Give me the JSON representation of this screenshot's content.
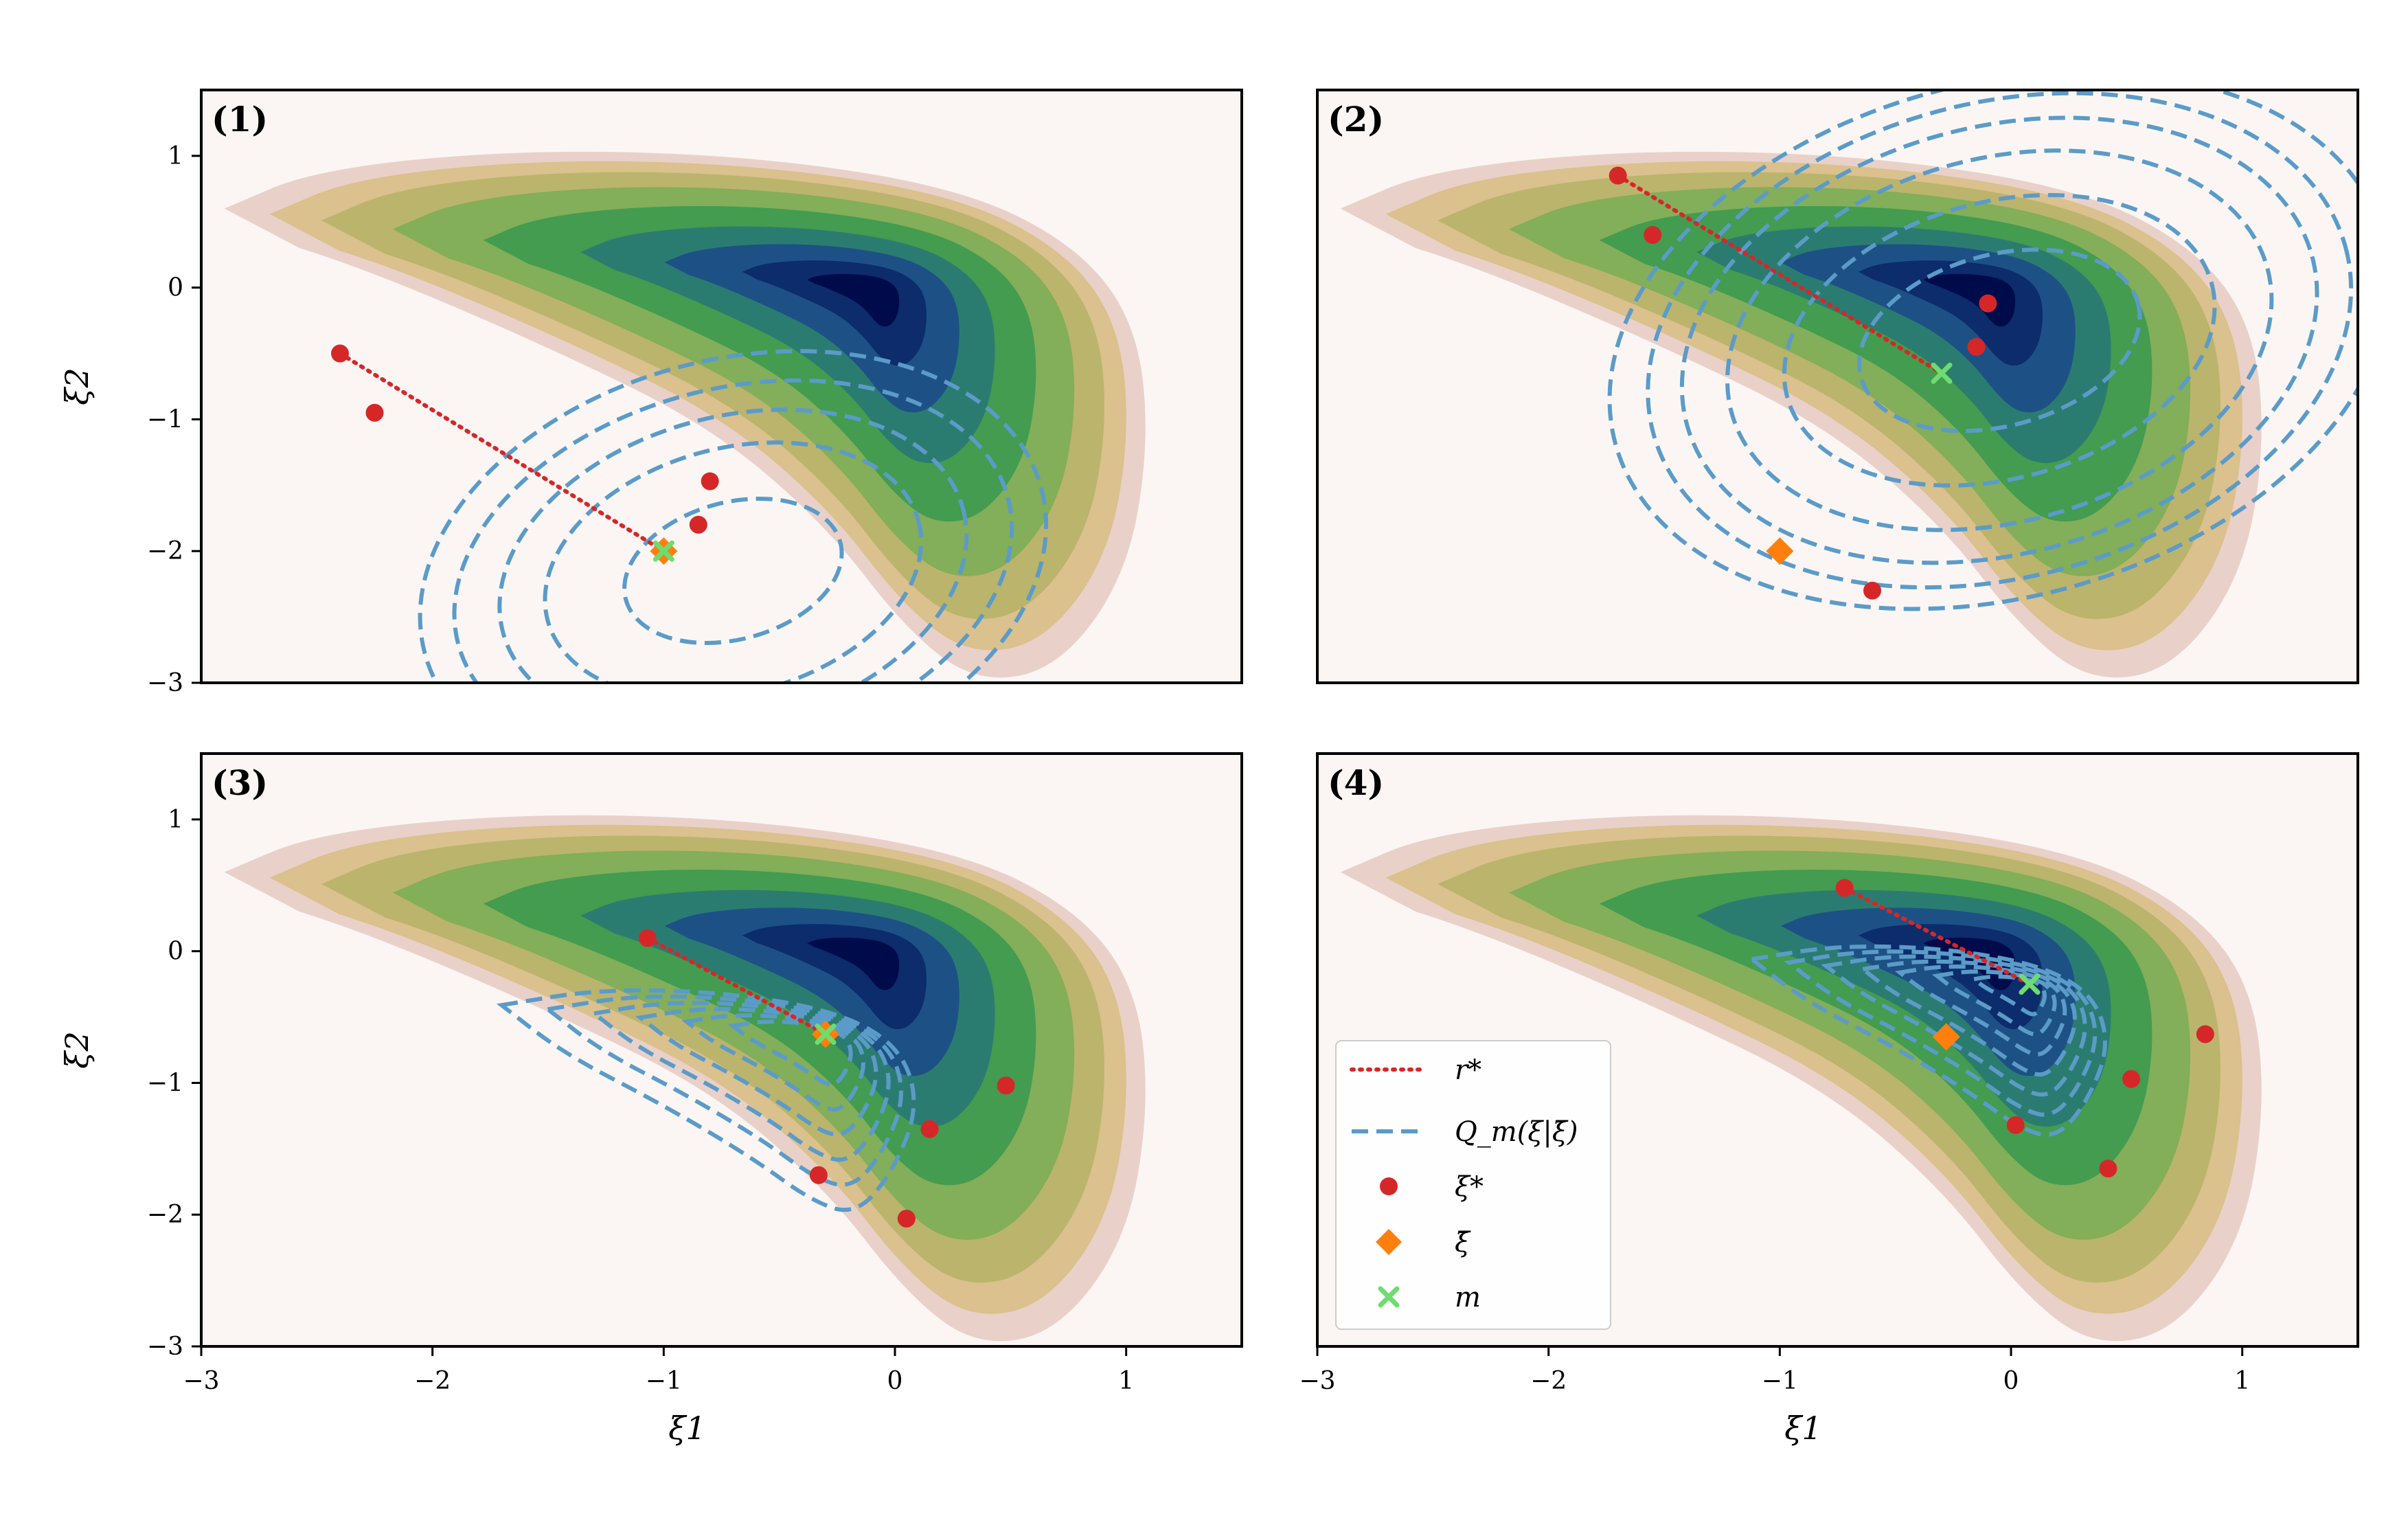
{
  "colors": {
    "path": "#d62728",
    "contour": "#5b9bc8",
    "xi_star": "#d62728",
    "xi_bar": "#ff7f0e",
    "m": "#6fdc6f",
    "density_low": "#fbf6f4",
    "density_mid": "#3f9b4f",
    "density_high": "#000a4a"
  },
  "legend": {
    "placement": "lower-left of panel (4)",
    "entries": [
      {
        "key": "r_star",
        "label": "r*",
        "marker": "dotted-line"
      },
      {
        "key": "Q_m",
        "label": "Q_m(ξ|ξ̄)",
        "marker": "dashed-line"
      },
      {
        "key": "xi_star",
        "label": "ξ*",
        "marker": "circle"
      },
      {
        "key": "xi_bar",
        "label": "ξ̄",
        "marker": "diamond"
      },
      {
        "key": "m",
        "label": "m",
        "marker": "x"
      }
    ]
  },
  "chart_data": [
    {
      "type": "scatter",
      "panel_label": "(1)",
      "xlabel": "",
      "ylabel": "ξ2",
      "xlim": [
        -3,
        1.5
      ],
      "ylim": [
        -3,
        1.5
      ],
      "xticks": [],
      "yticks": [
        1,
        0,
        -1,
        -2,
        -3
      ],
      "xi_star": [
        [
          -2.4,
          -0.5
        ],
        [
          -2.25,
          -0.95
        ],
        [
          -0.8,
          -1.47
        ],
        [
          -0.85,
          -1.8
        ]
      ],
      "xi_bar": [
        -1.0,
        -2.0
      ],
      "m": [
        -1.0,
        -2.0
      ],
      "path": [
        [
          -2.4,
          -0.5
        ],
        [
          -1.0,
          -2.0
        ]
      ],
      "contours": {
        "center": [
          -0.7,
          -2.15
        ],
        "ellipses": [
          [
            0.48,
            0.52,
            -15
          ],
          [
            0.83,
            0.93,
            -15
          ],
          [
            1.03,
            1.17,
            -15
          ],
          [
            1.23,
            1.38,
            -15
          ],
          [
            1.38,
            1.6,
            -15
          ]
        ]
      }
    },
    {
      "type": "scatter",
      "panel_label": "(2)",
      "xlabel": "",
      "ylabel": "",
      "xlim": [
        -3,
        1.5
      ],
      "ylim": [
        -3,
        1.5
      ],
      "xticks": [],
      "yticks": [],
      "xi_star": [
        [
          -1.7,
          0.85
        ],
        [
          -1.55,
          0.4
        ],
        [
          -0.1,
          -0.12
        ],
        [
          -0.15,
          -0.45
        ],
        [
          -0.6,
          -2.3
        ]
      ],
      "xi_bar": [
        -1.0,
        -2.0
      ],
      "m": [
        -0.3,
        -0.65
      ],
      "path": [
        [
          -1.7,
          0.85
        ],
        [
          -0.3,
          -0.65
        ]
      ],
      "contours": {
        "center": [
          -0.05,
          -0.4
        ],
        "ellipses": [
          [
            0.62,
            0.65,
            -15
          ],
          [
            0.95,
            1.05,
            -15
          ],
          [
            1.2,
            1.38,
            -15
          ],
          [
            1.4,
            1.62,
            -15
          ],
          [
            1.55,
            1.8,
            -15
          ],
          [
            1.72,
            1.95,
            -15
          ]
        ]
      }
    },
    {
      "type": "scatter",
      "panel_label": "(3)",
      "xlabel": "",
      "ylabel": "ξ2",
      "xlim": [
        -3,
        1.5
      ],
      "ylim": [
        -3,
        1.5
      ],
      "xticks": [],
      "yticks": [
        1,
        0,
        -1,
        -2,
        -3
      ],
      "xi_star": [
        [
          -1.07,
          0.1
        ],
        [
          0.48,
          -1.02
        ],
        [
          0.15,
          -1.35
        ],
        [
          -0.33,
          -1.7
        ],
        [
          0.05,
          -2.03
        ]
      ],
      "xi_bar": [
        -0.3,
        -0.63
      ],
      "m": [
        -0.3,
        -0.63
      ],
      "path": [
        [
          -1.07,
          0.1
        ],
        [
          -0.3,
          -0.63
        ]
      ],
      "contours": {
        "banana": true,
        "levels": [
          1.0,
          1.5,
          2.0,
          2.5,
          3.0,
          3.5
        ]
      }
    },
    {
      "type": "scatter",
      "panel_label": "(4)",
      "xlabel": "ξ1",
      "ylabel": "",
      "xlim": [
        -3,
        1.5
      ],
      "ylim": [
        -3,
        1.5
      ],
      "xticks": [
        -3,
        -2,
        -1,
        0,
        1
      ],
      "yticks": [],
      "xi_star": [
        [
          -0.72,
          0.48
        ],
        [
          0.84,
          -0.63
        ],
        [
          0.52,
          -0.97
        ],
        [
          0.02,
          -1.32
        ],
        [
          0.42,
          -1.65
        ]
      ],
      "xi_bar": [
        -0.28,
        -0.65
      ],
      "m": [
        0.08,
        -0.25
      ],
      "path": [
        [
          -0.72,
          0.48
        ],
        [
          0.08,
          -0.25
        ]
      ],
      "contours": {
        "banana": true,
        "levels": [
          0.6,
          1.0,
          1.4,
          1.8,
          2.2,
          2.6,
          3.0
        ]
      }
    }
  ],
  "bottom_left_xlabel": "ξ1",
  "bottom_left_xticks": [
    -3,
    -2,
    -1,
    0,
    1
  ]
}
